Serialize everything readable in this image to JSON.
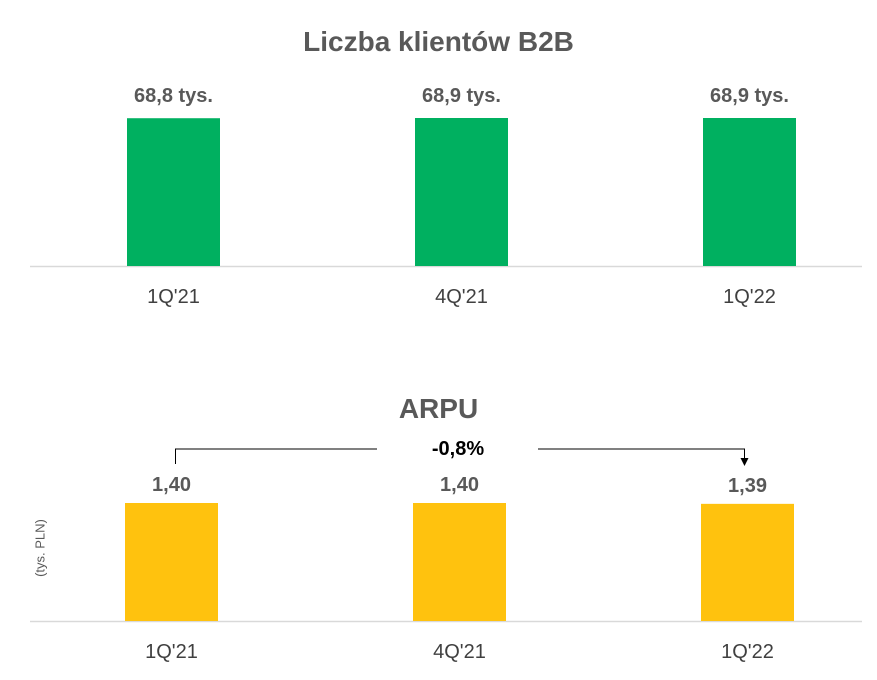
{
  "chart_data": [
    {
      "type": "bar",
      "title": "Liczba klientów B2B",
      "categories": [
        "1Q'21",
        "4Q'21",
        "1Q'22"
      ],
      "values": [
        68.8,
        68.9,
        68.9
      ],
      "data_labels": [
        "68,8 tys.",
        "68,9 tys.",
        "68,9 tys."
      ],
      "ylim": [
        0,
        68.9
      ],
      "color": "#00B060",
      "grid": false
    },
    {
      "type": "bar",
      "title": "ARPU",
      "ylabel": "(tys. PLN)",
      "categories": [
        "1Q'21",
        "4Q'21",
        "1Q'22"
      ],
      "values": [
        1.4,
        1.4,
        1.39
      ],
      "data_labels": [
        "1,40",
        "1,40",
        "1,39"
      ],
      "ylim": [
        0,
        1.4
      ],
      "color": "#FFC20E",
      "grid": false,
      "annotation": {
        "text": "-0,8%",
        "from": "1Q'21",
        "to": "1Q'22"
      }
    }
  ]
}
